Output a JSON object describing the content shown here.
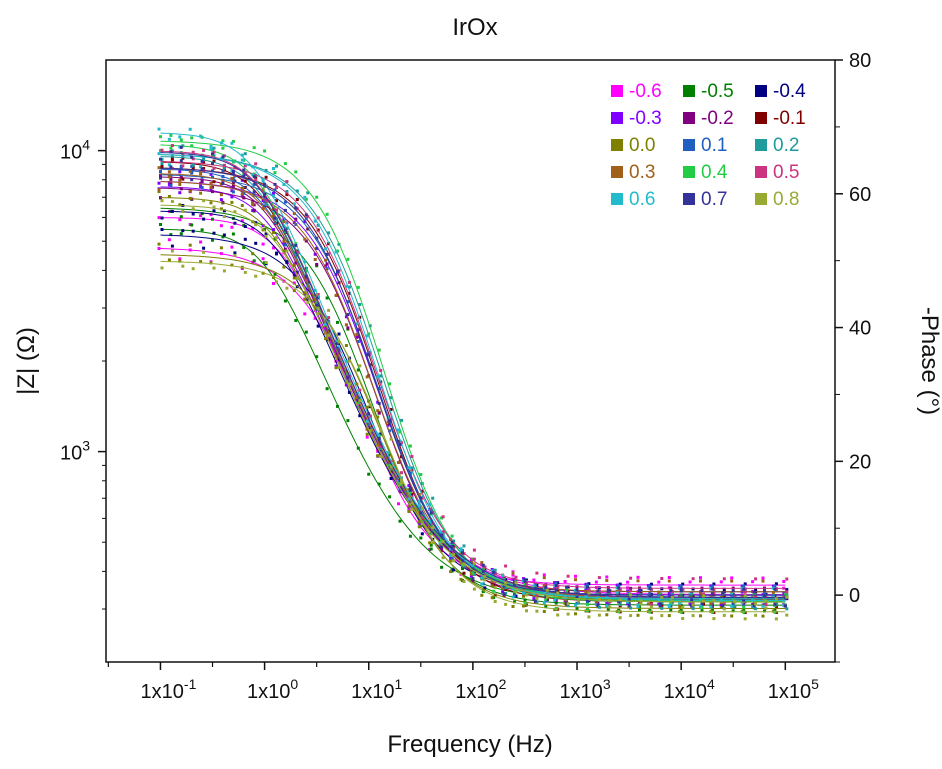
{
  "chart_data": {
    "type": "scatter",
    "title": "IrOx",
    "xlabel": "Frequency (Hz)",
    "ylabel_left": "|Z| (Ω)",
    "ylabel_right": "-Phase (°)",
    "x_scale": "log",
    "y_left_scale": "log",
    "xlim": [
      0.03,
      300000
    ],
    "ylim_left": [
      200,
      20000
    ],
    "ylim_right": [
      -10,
      80
    ],
    "x_ticks": [
      {
        "mant": "1x10",
        "exp": "-1"
      },
      {
        "mant": "1x10",
        "exp": "0"
      },
      {
        "mant": "1x10",
        "exp": "1"
      },
      {
        "mant": "1x10",
        "exp": "2"
      },
      {
        "mant": "1x10",
        "exp": "3"
      },
      {
        "mant": "1x10",
        "exp": "4"
      },
      {
        "mant": "1x10",
        "exp": "5"
      }
    ],
    "y_left_ticks": [
      {
        "mant": "10",
        "exp": "3"
      },
      {
        "mant": "10",
        "exp": "4"
      }
    ],
    "y_right_ticks": [
      "0",
      "20",
      "40",
      "60",
      "80"
    ],
    "grid": false,
    "legend_position": "top-right",
    "legend_columns": 3,
    "markers": "square dots with solid fit lines",
    "series": [
      {
        "name": "-0.6",
        "color": "#ff00ff",
        "z_low": 6000,
        "z_high": 335,
        "z_fc": 1.6,
        "ph_low": 52,
        "ph_fc": 9,
        "ph_end": 1.5
      },
      {
        "name": "-0.5",
        "color": "#008000",
        "z_low": 5500,
        "z_high": 318,
        "z_fc": 1.1,
        "ph_low": 58,
        "ph_fc": 11,
        "ph_end": -1.5
      },
      {
        "name": "-0.4",
        "color": "#000080",
        "z_low": 6300,
        "z_high": 328,
        "z_fc": 1.4,
        "ph_low": 54,
        "ph_fc": 10,
        "ph_end": 0.5
      },
      {
        "name": "-0.3",
        "color": "#8000ff",
        "z_low": 7600,
        "z_high": 325,
        "z_fc": 1.2,
        "ph_low": 62,
        "ph_fc": 12,
        "ph_end": 0
      },
      {
        "name": "-0.2",
        "color": "#800080",
        "z_low": 8200,
        "z_high": 322,
        "z_fc": 1.15,
        "ph_low": 61,
        "ph_fc": 11.5,
        "ph_end": -0.5
      },
      {
        "name": "-0.1",
        "color": "#800000",
        "z_low": 9200,
        "z_high": 320,
        "z_fc": 1.05,
        "ph_low": 64,
        "ph_fc": 12.5,
        "ph_end": -1
      },
      {
        "name": "0.0",
        "color": "#808000",
        "z_low": 7000,
        "z_high": 318,
        "z_fc": 1.3,
        "ph_low": 51,
        "ph_fc": 13,
        "ph_end": -2
      },
      {
        "name": "0.1",
        "color": "#1f5fbf",
        "z_low": 8700,
        "z_high": 323,
        "z_fc": 1.1,
        "ph_low": 63,
        "ph_fc": 12,
        "ph_end": 0
      },
      {
        "name": "0.2",
        "color": "#1f9b9b",
        "z_low": 9600,
        "z_high": 321,
        "z_fc": 1.0,
        "ph_low": 66,
        "ph_fc": 13.5,
        "ph_end": -0.5
      },
      {
        "name": "0.3",
        "color": "#a0601a",
        "z_low": 8400,
        "z_high": 324,
        "z_fc": 1.15,
        "ph_low": 62,
        "ph_fc": 11,
        "ph_end": 0.5
      },
      {
        "name": "0.4",
        "color": "#22cc44",
        "z_low": 10500,
        "z_high": 319,
        "z_fc": 0.95,
        "ph_low": 68,
        "ph_fc": 14,
        "ph_end": -1
      },
      {
        "name": "0.5",
        "color": "#cc3380",
        "z_low": 10000,
        "z_high": 326,
        "z_fc": 1.0,
        "ph_low": 65,
        "ph_fc": 12,
        "ph_end": 1
      },
      {
        "name": "0.6",
        "color": "#22bbcc",
        "z_low": 11500,
        "z_high": 320,
        "z_fc": 0.9,
        "ph_low": 66,
        "ph_fc": 12.5,
        "ph_end": -0.5
      },
      {
        "name": "0.7",
        "color": "#333399",
        "z_low": 9900,
        "z_high": 327,
        "z_fc": 1.0,
        "ph_low": 64,
        "ph_fc": 11.5,
        "ph_end": 0
      },
      {
        "name": "0.8",
        "color": "#99aa33",
        "z_low": 6600,
        "z_high": 316,
        "z_fc": 1.4,
        "ph_low": 50,
        "ph_fc": 14,
        "ph_end": -2.5
      }
    ]
  }
}
